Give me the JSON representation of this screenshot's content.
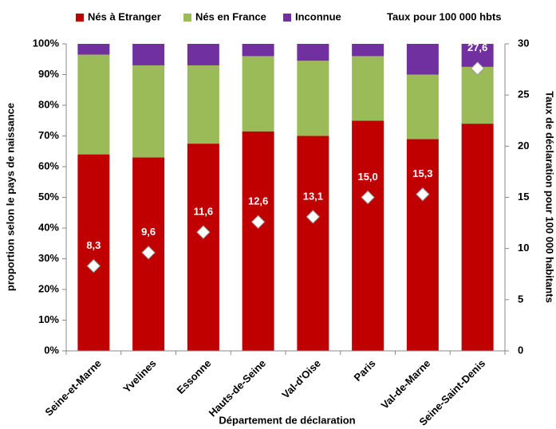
{
  "chart_data": {
    "type": "stacked_bar",
    "x_label": "Département de déclaration",
    "y_label": "proportion selon le pays de naissance",
    "y2_label": "Taux de déclaration pour 100 000 habitants",
    "categories": [
      "Seine-et-Marne",
      "Yvelines",
      "Essonne",
      "Hauts-de-Seine",
      "Val-d'Oise",
      "Paris",
      "Val-de-Marne",
      "Seine-Saint-Denis"
    ],
    "series": [
      {
        "name": "Nés à Etranger",
        "color": "#c00000",
        "values": [
          64,
          63,
          67.5,
          71.5,
          70,
          75,
          69,
          74
        ]
      },
      {
        "name": "Nés en France",
        "color": "#9bbb59",
        "values": [
          32.5,
          30,
          25.5,
          24.5,
          24.5,
          21,
          21,
          18.5
        ]
      },
      {
        "name": "Inconnue",
        "color": "#7030a0",
        "values": [
          3.5,
          7,
          7,
          4,
          5.5,
          4,
          10,
          7.5
        ]
      },
      {
        "name": "Taux pour 100 000 hbts",
        "color": "#ffffff",
        "type": "scatter",
        "axis": "y2",
        "values": [
          8.3,
          9.6,
          11.6,
          12.6,
          13.1,
          15.0,
          15.3,
          27.6
        ],
        "value_labels": [
          "8,3",
          "9,6",
          "11,6",
          "12,6",
          "13,1",
          "15,0",
          "15,3",
          "27,6"
        ]
      }
    ],
    "ylim": [
      0,
      100
    ],
    "yticks": [
      {
        "value": 0,
        "label": "0%"
      },
      {
        "value": 10,
        "label": "10%"
      },
      {
        "value": 20,
        "label": "20%"
      },
      {
        "value": 30,
        "label": "30%"
      },
      {
        "value": 40,
        "label": "40%"
      },
      {
        "value": 50,
        "label": "50%"
      },
      {
        "value": 60,
        "label": "60%"
      },
      {
        "value": 70,
        "label": "70%"
      },
      {
        "value": 80,
        "label": "80%"
      },
      {
        "value": 90,
        "label": "90%"
      },
      {
        "value": 100,
        "label": "100%"
      }
    ],
    "y2lim": [
      0,
      30
    ],
    "y2ticks": [
      0,
      5,
      10,
      15,
      20,
      25,
      30
    ],
    "legend": "top"
  }
}
